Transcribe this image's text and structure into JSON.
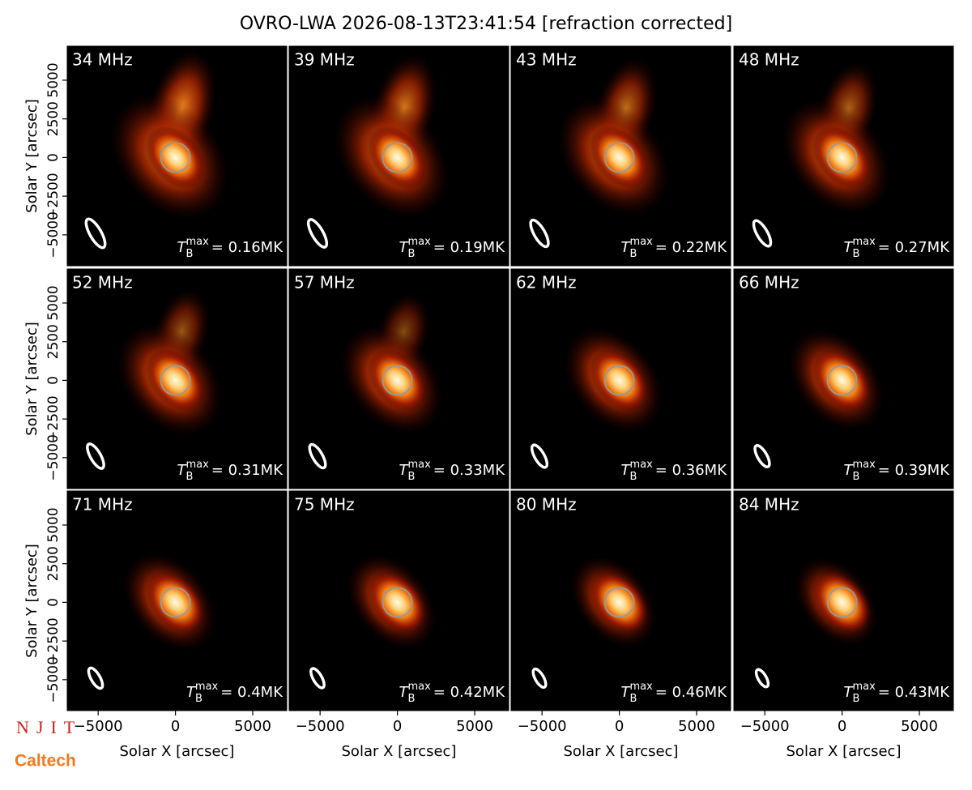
{
  "title": "OVRO-LWA 2026-08-13T23:41:54 [refraction corrected]",
  "logos": {
    "njit": "NJIT",
    "caltech": "Caltech"
  },
  "chart_data": [
    {
      "type": "image",
      "title": "34 MHz",
      "tb_symbol": "T",
      "tb_sub": "B",
      "tb_sup": "max",
      "tb_text": "= 0.16MK",
      "xlim": [
        -7000,
        7200
      ],
      "ylim": [
        -7000,
        7200
      ],
      "ylabel": "Solar Y [arcsec]",
      "yticks": [
        {
          "value": -5000,
          "label": "−5000"
        },
        {
          "value": -2500,
          "label": "−2500"
        },
        0,
        2500,
        5000
      ]
    },
    {
      "type": "image",
      "title": "39 MHz",
      "tb_symbol": "T",
      "tb_sub": "B",
      "tb_sup": "max",
      "tb_text": "= 0.19MK",
      "xlim": [
        -7000,
        7200
      ],
      "ylim": [
        -7000,
        7200
      ]
    },
    {
      "type": "image",
      "title": "43 MHz",
      "tb_symbol": "T",
      "tb_sub": "B",
      "tb_sup": "max",
      "tb_text": "= 0.22MK",
      "xlim": [
        -7000,
        7200
      ],
      "ylim": [
        -7000,
        7200
      ]
    },
    {
      "type": "image",
      "title": "48 MHz",
      "tb_symbol": "T",
      "tb_sub": "B",
      "tb_sup": "max",
      "tb_text": "= 0.27MK",
      "xlim": [
        -7000,
        7200
      ],
      "ylim": [
        -7000,
        7200
      ]
    },
    {
      "type": "image",
      "title": "52 MHz",
      "tb_symbol": "T",
      "tb_sub": "B",
      "tb_sup": "max",
      "tb_text": "= 0.31MK",
      "xlim": [
        -7000,
        7200
      ],
      "ylim": [
        -7000,
        7200
      ],
      "ylabel": "Solar Y [arcsec]",
      "yticks": [
        {
          "value": -5000,
          "label": "−5000"
        },
        {
          "value": -2500,
          "label": "−2500"
        },
        0,
        2500,
        5000
      ]
    },
    {
      "type": "image",
      "title": "57 MHz",
      "tb_symbol": "T",
      "tb_sub": "B",
      "tb_sup": "max",
      "tb_text": "= 0.33MK",
      "xlim": [
        -7000,
        7200
      ],
      "ylim": [
        -7000,
        7200
      ]
    },
    {
      "type": "image",
      "title": "62 MHz",
      "tb_symbol": "T",
      "tb_sub": "B",
      "tb_sup": "max",
      "tb_text": "= 0.36MK",
      "xlim": [
        -7000,
        7200
      ],
      "ylim": [
        -7000,
        7200
      ]
    },
    {
      "type": "image",
      "title": "66 MHz",
      "tb_symbol": "T",
      "tb_sub": "B",
      "tb_sup": "max",
      "tb_text": "= 0.39MK",
      "xlim": [
        -7000,
        7200
      ],
      "ylim": [
        -7000,
        7200
      ]
    },
    {
      "type": "image",
      "title": "71 MHz",
      "tb_symbol": "T",
      "tb_sub": "B",
      "tb_sup": "max",
      "tb_text": "= 0.4MK",
      "xlim": [
        -7000,
        7200
      ],
      "ylim": [
        -7000,
        7200
      ],
      "ylabel": "Solar Y [arcsec]",
      "yticks": [
        {
          "value": -5000,
          "label": "−5000"
        },
        {
          "value": -2500,
          "label": "−2500"
        },
        0,
        2500,
        5000
      ],
      "xlabel": "Solar X [arcsec]",
      "xticks": [
        {
          "value": -5000,
          "label": "−5000"
        },
        0,
        5000
      ]
    },
    {
      "type": "image",
      "title": "75 MHz",
      "tb_symbol": "T",
      "tb_sub": "B",
      "tb_sup": "max",
      "tb_text": "= 0.42MK",
      "xlim": [
        -7000,
        7200
      ],
      "ylim": [
        -7000,
        7200
      ],
      "xlabel": "Solar X [arcsec]",
      "xticks": [
        {
          "value": -5000,
          "label": "−5000"
        },
        0,
        5000
      ]
    },
    {
      "type": "image",
      "title": "80 MHz",
      "tb_symbol": "T",
      "tb_sub": "B",
      "tb_sup": "max",
      "tb_text": "= 0.46MK",
      "xlim": [
        -7000,
        7200
      ],
      "ylim": [
        -7000,
        7200
      ],
      "xlabel": "Solar X [arcsec]",
      "xticks": [
        {
          "value": -5000,
          "label": "−5000"
        },
        0,
        5000
      ]
    },
    {
      "type": "image",
      "title": "84 MHz",
      "tb_symbol": "T",
      "tb_sub": "B",
      "tb_sup": "max",
      "tb_text": "= 0.43MK",
      "xlim": [
        -7000,
        7200
      ],
      "ylim": [
        -7000,
        7200
      ],
      "xlabel": "Solar X [arcsec]",
      "xticks": [
        {
          "value": -5000,
          "label": "−5000"
        },
        0,
        5000
      ]
    }
  ]
}
